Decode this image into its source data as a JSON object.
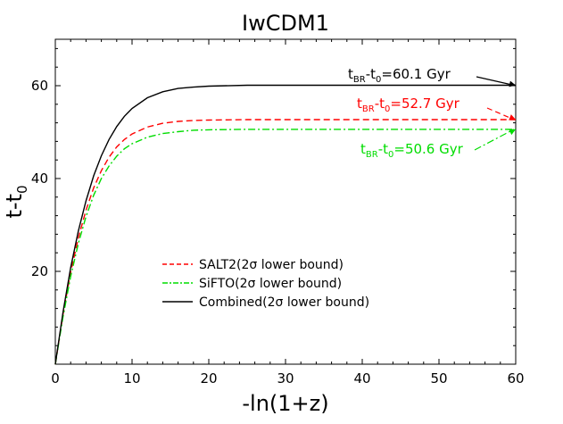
{
  "chart_data": {
    "type": "line",
    "title": "IwCDM1",
    "xlabel": "-ln(1+z)",
    "ylabel": "t-t",
    "ylabel_sub": "0",
    "xlim": [
      0,
      60
    ],
    "ylim": [
      0,
      70
    ],
    "x_ticks": [
      0,
      10,
      20,
      30,
      40,
      50,
      60
    ],
    "y_ticks": [
      20,
      40,
      60
    ],
    "grid": false,
    "legend_position": "center-left",
    "series": [
      {
        "name": "SALT2(2σ lower bound)",
        "color": "#ff0000",
        "style": "dashed",
        "asymptote": 52.7,
        "x": [
          0,
          1,
          2,
          3,
          4,
          5,
          6,
          7,
          8,
          9,
          10,
          12,
          14,
          16,
          18,
          20,
          25,
          30,
          40,
          50,
          60
        ],
        "y": [
          0,
          10.7,
          19.8,
          27.2,
          33.2,
          38.0,
          41.7,
          44.6,
          46.8,
          48.4,
          49.6,
          51.1,
          51.9,
          52.3,
          52.5,
          52.6,
          52.7,
          52.7,
          52.7,
          52.7,
          52.7
        ]
      },
      {
        "name": "SiFTO(2σ lower bound)",
        "color": "#00dd00",
        "style": "dashdot",
        "asymptote": 50.6,
        "x": [
          0,
          1,
          2,
          3,
          4,
          5,
          6,
          7,
          8,
          9,
          10,
          12,
          14,
          16,
          18,
          20,
          25,
          30,
          40,
          50,
          60
        ],
        "y": [
          0,
          10.2,
          18.9,
          26.0,
          31.8,
          36.4,
          40.0,
          42.7,
          44.8,
          46.4,
          47.5,
          48.9,
          49.7,
          50.1,
          50.4,
          50.5,
          50.6,
          50.6,
          50.6,
          50.6,
          50.6
        ]
      },
      {
        "name": "Combined(2σ lower bound)",
        "color": "#000000",
        "style": "solid",
        "asymptote": 60.1,
        "x": [
          0,
          1,
          2,
          3,
          4,
          5,
          6,
          7,
          8,
          9,
          10,
          12,
          14,
          16,
          18,
          20,
          25,
          30,
          40,
          50,
          60
        ],
        "y": [
          0,
          11.2,
          20.8,
          28.7,
          35.2,
          40.6,
          44.9,
          48.4,
          51.2,
          53.4,
          55.1,
          57.4,
          58.7,
          59.4,
          59.7,
          59.9,
          60.1,
          60.1,
          60.1,
          60.1,
          60.1
        ]
      }
    ],
    "annotations": [
      {
        "parts": [
          "t",
          "BR",
          "-t",
          "0",
          "=60.1 Gyr"
        ],
        "color": "#000000",
        "target": [
          60,
          60.1
        ]
      },
      {
        "parts": [
          "t",
          "BR",
          "-t",
          "0",
          "=52.7 Gyr"
        ],
        "color": "#ff0000",
        "target": [
          60,
          52.7
        ]
      },
      {
        "parts": [
          "t",
          "BR",
          "-t",
          "0",
          "=50.6 Gyr"
        ],
        "color": "#00dd00",
        "target": [
          60,
          50.6
        ]
      }
    ]
  }
}
